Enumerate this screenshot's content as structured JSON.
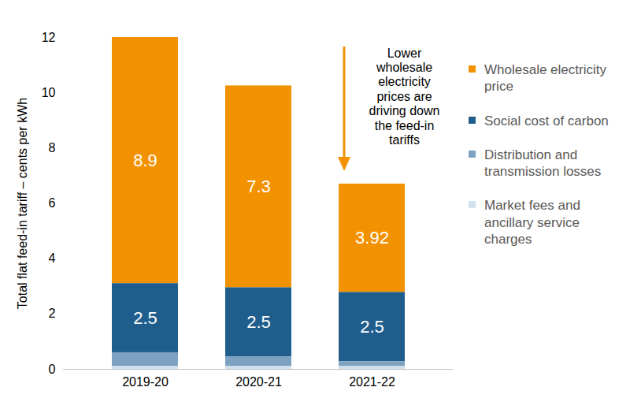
{
  "chart_data": {
    "type": "bar",
    "stacked": true,
    "categories": [
      "2019-20",
      "2020-21",
      "2021-22"
    ],
    "ylabel": "Total flat feed-in tariff – cents per kWh",
    "ylim": [
      0,
      12
    ],
    "yticks": [
      0,
      2,
      4,
      6,
      8,
      10,
      12
    ],
    "annotation": "Lower\nwholesale\nelectricity\nprices are\ndriving down\nthe feed-in\ntariffs",
    "legend": "right",
    "series": [
      {
        "name": "Wholesale electricity price",
        "color": "#F39200",
        "values": [
          8.9,
          7.3,
          3.92
        ],
        "data_labels": true
      },
      {
        "name": "Social cost of carbon",
        "color": "#1F5E8C",
        "values": [
          2.5,
          2.5,
          2.5
        ],
        "data_labels": true
      },
      {
        "name": "Distribution and transmission losses",
        "color": "#7DA2C1",
        "values": [
          0.5,
          0.35,
          0.18
        ],
        "data_labels": false
      },
      {
        "name": "Market fees and ancillary service charges",
        "color": "#D3E1EC",
        "values": [
          0.1,
          0.1,
          0.1
        ],
        "data_labels": false
      }
    ]
  }
}
